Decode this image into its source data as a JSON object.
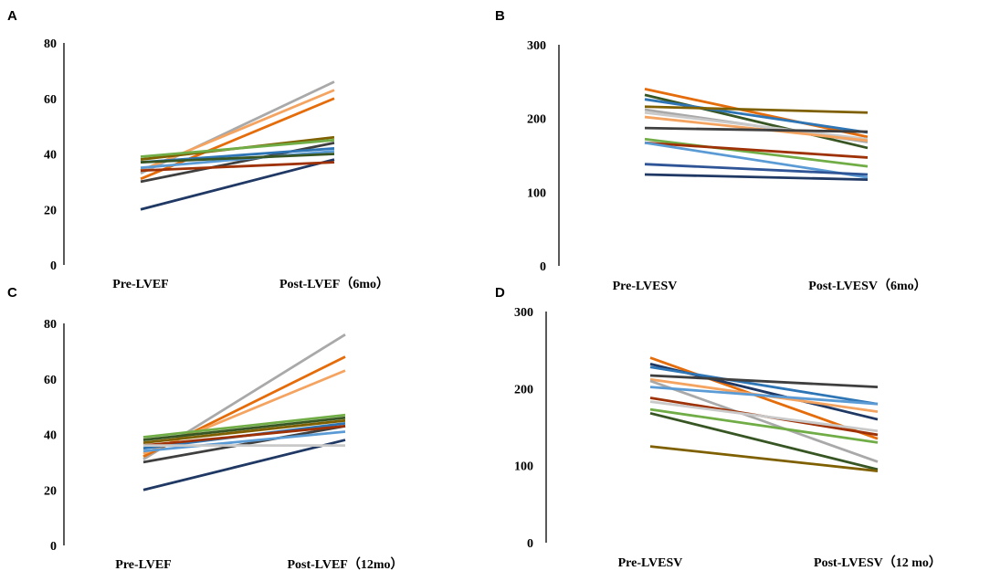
{
  "chart_data": [
    {
      "panel": "A",
      "type": "line",
      "title": "",
      "xlabel": "",
      "ylabel": "",
      "categories": [
        "Pre-LVEF",
        "Post-LVEF（6mo）"
      ],
      "ylim": [
        0,
        80
      ],
      "yticks": [
        0,
        20,
        40,
        60,
        80
      ],
      "series": [
        {
          "color": "#1f3864",
          "values": [
            20,
            38
          ]
        },
        {
          "color": "#a9a9a9",
          "values": [
            33,
            66
          ]
        },
        {
          "color": "#f4a460",
          "values": [
            34,
            63
          ]
        },
        {
          "color": "#e46c0a",
          "values": [
            31,
            60
          ]
        },
        {
          "color": "#7f6000",
          "values": [
            38,
            46
          ]
        },
        {
          "color": "#70ad47",
          "values": [
            39,
            45
          ]
        },
        {
          "color": "#3f3f3f",
          "values": [
            30,
            44
          ]
        },
        {
          "color": "#2e75b6",
          "values": [
            37,
            42
          ]
        },
        {
          "color": "#5b9bd5",
          "values": [
            35,
            41
          ]
        },
        {
          "color": "#375623",
          "values": [
            37,
            40
          ]
        },
        {
          "color": "#9e3106",
          "values": [
            34,
            37
          ]
        }
      ]
    },
    {
      "panel": "B",
      "type": "line",
      "title": "",
      "xlabel": "",
      "ylabel": "",
      "categories": [
        "Pre-LVESV",
        "Post-LVESV（6mo）"
      ],
      "ylim": [
        0,
        300
      ],
      "yticks": [
        0,
        100,
        200,
        300
      ],
      "series": [
        {
          "color": "#e46c0a",
          "values": [
            240,
            175
          ]
        },
        {
          "color": "#375623",
          "values": [
            232,
            160
          ]
        },
        {
          "color": "#2e75b6",
          "values": [
            226,
            181
          ]
        },
        {
          "color": "#7f6000",
          "values": [
            216,
            208
          ]
        },
        {
          "color": "#a9a9a9",
          "values": [
            212,
            168
          ]
        },
        {
          "color": "#c9c9c9",
          "values": [
            208,
            172
          ]
        },
        {
          "color": "#f4a460",
          "values": [
            202,
            170
          ]
        },
        {
          "color": "#3f3f3f",
          "values": [
            187,
            182
          ]
        },
        {
          "color": "#70ad47",
          "values": [
            172,
            135
          ]
        },
        {
          "color": "#9e3106",
          "values": [
            167,
            147
          ]
        },
        {
          "color": "#5b9bd5",
          "values": [
            167,
            120
          ]
        },
        {
          "color": "#2f5597",
          "values": [
            138,
            124
          ]
        },
        {
          "color": "#1f3864",
          "values": [
            124,
            117
          ]
        }
      ]
    },
    {
      "panel": "C",
      "type": "line",
      "title": "",
      "xlabel": "",
      "ylabel": "",
      "categories": [
        "Pre-LVEF",
        "Post-LVEF（12mo）"
      ],
      "ylim": [
        0,
        80
      ],
      "yticks": [
        0,
        20,
        40,
        60,
        80
      ],
      "series": [
        {
          "color": "#1f3864",
          "values": [
            20,
            38
          ]
        },
        {
          "color": "#a9a9a9",
          "values": [
            31,
            76
          ]
        },
        {
          "color": "#e46c0a",
          "values": [
            32,
            68
          ]
        },
        {
          "color": "#f4a460",
          "values": [
            33,
            63
          ]
        },
        {
          "color": "#70ad47",
          "values": [
            39,
            47
          ]
        },
        {
          "color": "#375623",
          "values": [
            38,
            46
          ]
        },
        {
          "color": "#7f6000",
          "values": [
            37,
            45
          ]
        },
        {
          "color": "#3f3f3f",
          "values": [
            30,
            43
          ]
        },
        {
          "color": "#2e75b6",
          "values": [
            35,
            44
          ]
        },
        {
          "color": "#9e3106",
          "values": [
            36,
            43
          ]
        },
        {
          "color": "#5b9bd5",
          "values": [
            34,
            41
          ]
        },
        {
          "color": "#c9c9c9",
          "values": [
            36,
            36
          ]
        }
      ]
    },
    {
      "panel": "D",
      "type": "line",
      "title": "",
      "xlabel": "",
      "ylabel": "",
      "categories": [
        "Pre-LVESV",
        "Post-LVESV（12 mo）"
      ],
      "ylim": [
        0,
        300
      ],
      "yticks": [
        0,
        100,
        200,
        300
      ],
      "series": [
        {
          "color": "#e46c0a",
          "values": [
            240,
            135
          ]
        },
        {
          "color": "#1f3864",
          "values": [
            232,
            160
          ]
        },
        {
          "color": "#2e75b6",
          "values": [
            228,
            180
          ]
        },
        {
          "color": "#3f3f3f",
          "values": [
            217,
            202
          ]
        },
        {
          "color": "#f4a460",
          "values": [
            212,
            170
          ]
        },
        {
          "color": "#a9a9a9",
          "values": [
            210,
            105
          ]
        },
        {
          "color": "#5b9bd5",
          "values": [
            202,
            180
          ]
        },
        {
          "color": "#9e3106",
          "values": [
            188,
            140
          ]
        },
        {
          "color": "#c9c9c9",
          "values": [
            183,
            145
          ]
        },
        {
          "color": "#70ad47",
          "values": [
            173,
            130
          ]
        },
        {
          "color": "#375623",
          "values": [
            168,
            95
          ]
        },
        {
          "color": "#7f6000",
          "values": [
            125,
            93
          ]
        }
      ]
    }
  ]
}
